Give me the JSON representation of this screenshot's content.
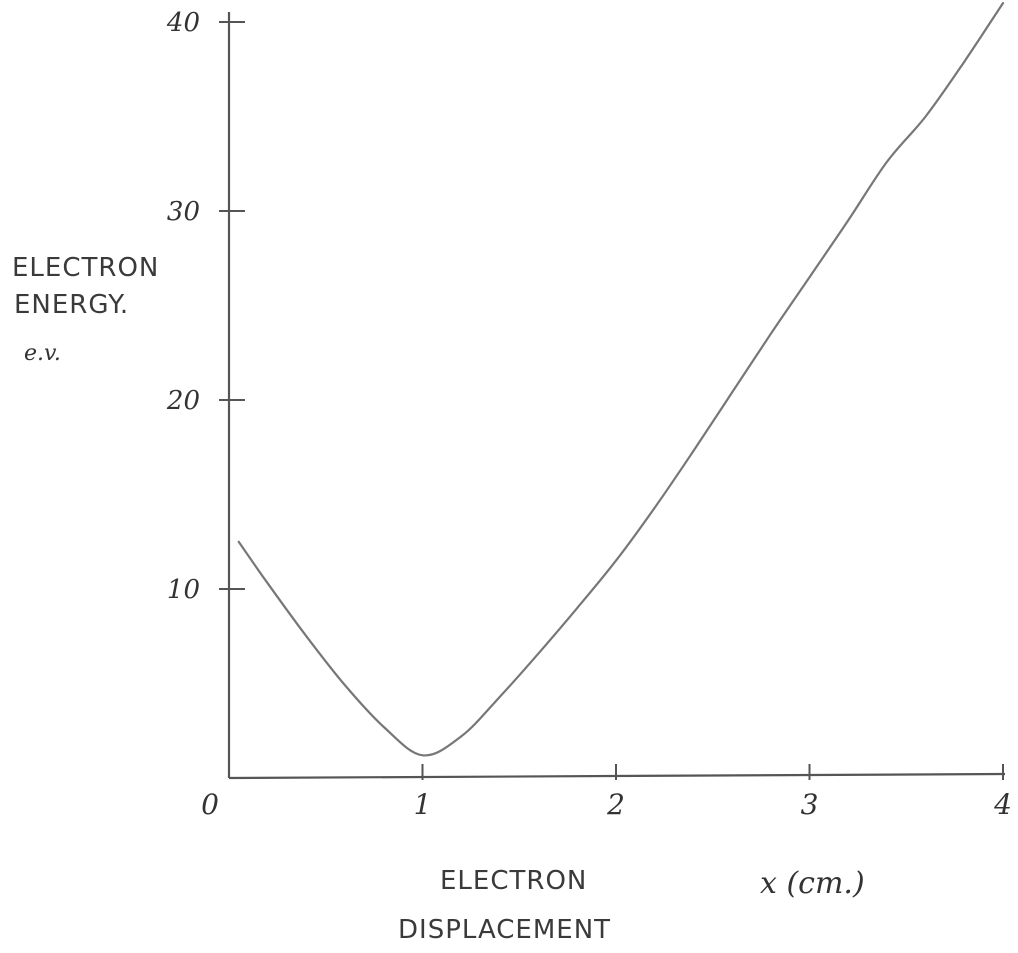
{
  "chart_data": {
    "type": "line",
    "ylabel_lines": [
      "ELECTRON",
      "ENERGY.",
      "e.v."
    ],
    "xlabel_lines": [
      "ELECTRON",
      "DISPLACEMENT"
    ],
    "xlabel_symbol": "x (cm.)",
    "x_ticks": [
      "0",
      "1",
      "2",
      "3",
      "4"
    ],
    "y_ticks": [
      "10",
      "20",
      "30",
      "40"
    ],
    "xlim": [
      0,
      4
    ],
    "ylim": [
      0,
      40
    ],
    "grid": false,
    "series": [
      {
        "x": [
          0.05,
          0.2,
          0.4,
          0.6,
          0.8,
          1.0,
          1.2,
          1.4,
          1.6,
          1.8,
          2.0,
          2.2,
          2.4,
          2.6,
          2.8,
          3.0,
          3.2,
          3.4,
          3.6,
          3.8,
          4.0
        ],
        "values": [
          12.5,
          10.3,
          7.5,
          4.9,
          2.7,
          1.2,
          2.2,
          4.3,
          6.6,
          9.0,
          11.5,
          14.3,
          17.3,
          20.4,
          23.5,
          26.5,
          29.5,
          32.6,
          35.0,
          37.9,
          41.0
        ]
      }
    ],
    "colors": {
      "axis": "#555555",
      "curve": "#777777",
      "text": "#333333"
    }
  }
}
